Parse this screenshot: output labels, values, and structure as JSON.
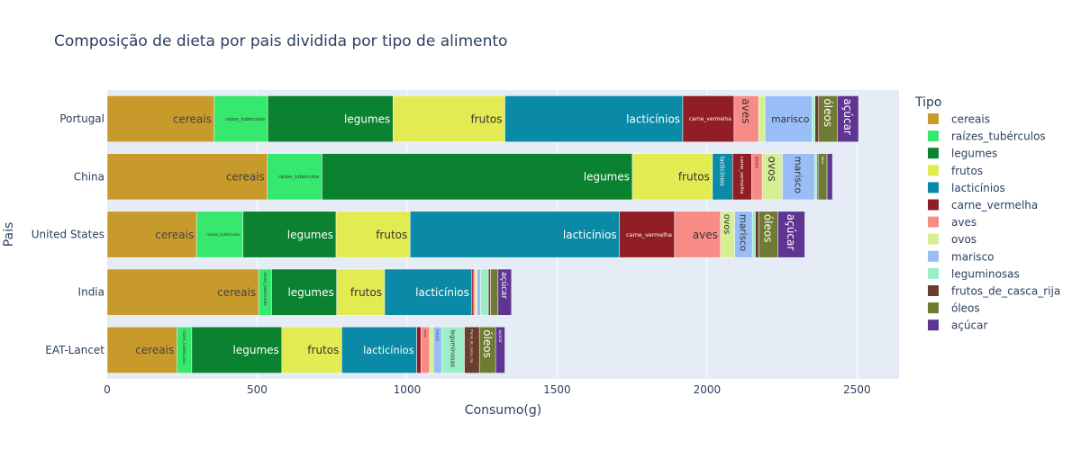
{
  "chart_data": {
    "type": "bar",
    "orientation": "horizontal",
    "stacked": true,
    "title": "Composição de dieta por pais dividida por tipo de alimento",
    "xlabel": "Consumo(g)",
    "ylabel": "Pais",
    "xlim": [
      0,
      2640
    ],
    "xticks": [
      0,
      500,
      1000,
      1500,
      2000,
      2500
    ],
    "xtick_labels": [
      "0",
      "500",
      "1000",
      "1500",
      "2000",
      "2500"
    ],
    "grid": true,
    "legend_title": "Tipo",
    "legend_position": "right",
    "categories": [
      "Portugal",
      "China",
      "United States",
      "India",
      "EAT-Lancet"
    ],
    "series": [
      {
        "name": "cereais",
        "color": "#C89A2B",
        "label_color": "#444444",
        "values": [
          357,
          534,
          298,
          505,
          232
        ]
      },
      {
        "name": "raízes_tubérculos",
        "color": "#37E86E",
        "label_color": "#333333",
        "values": [
          178,
          182,
          155,
          43,
          50
        ]
      },
      {
        "name": "legumes",
        "color": "#0B8230",
        "label_color": "#ffffff",
        "values": [
          418,
          1035,
          310,
          217,
          300
        ]
      },
      {
        "name": "frutos",
        "color": "#E2EC52",
        "label_color": "#333333",
        "values": [
          373,
          267,
          247,
          160,
          200
        ]
      },
      {
        "name": "lacticínios",
        "color": "#0A8AA6",
        "label_color": "#ffffff",
        "values": [
          593,
          67,
          698,
          291,
          250
        ]
      },
      {
        "name": "carne_vermelha",
        "color": "#911E24",
        "label_color": "#ffffff",
        "values": [
          171,
          64,
          184,
          6,
          14
        ]
      },
      {
        "name": "aves",
        "color": "#F98B87",
        "label_color": "#333333",
        "values": [
          82,
          35,
          153,
          5,
          29
        ]
      },
      {
        "name": "ovos",
        "color": "#D7EF94",
        "label_color": "#333333",
        "values": [
          21,
          67,
          47,
          6,
          13
        ]
      },
      {
        "name": "marisco",
        "color": "#99BEF7",
        "label_color": "#333333",
        "values": [
          157,
          108,
          59,
          12,
          28
        ]
      },
      {
        "name": "leguminosas",
        "color": "#9BEFC6",
        "label_color": "#333333",
        "values": [
          10,
          8,
          10,
          26,
          75
        ]
      },
      {
        "name": "frutos_de_casca_rija",
        "color": "#6A3D2C",
        "label_color": "#ffffff",
        "values": [
          12,
          5,
          11,
          7,
          50
        ]
      },
      {
        "name": "óleos",
        "color": "#6F7A33",
        "label_color": "#ffffff",
        "values": [
          63,
          28,
          64,
          25,
          54
        ]
      },
      {
        "name": "açúcar",
        "color": "#5E3692",
        "label_color": "#ffffff",
        "values": [
          70,
          18,
          90,
          45,
          31
        ]
      }
    ]
  }
}
